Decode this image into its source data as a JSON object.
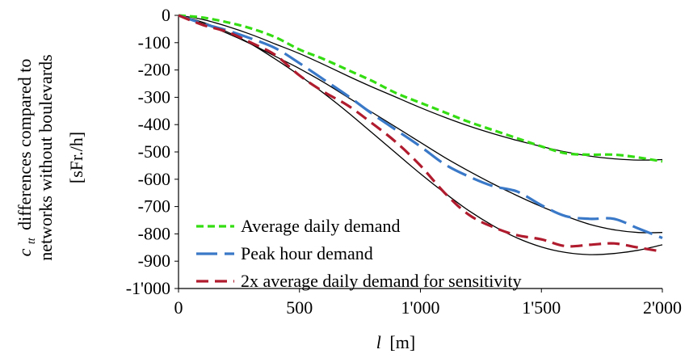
{
  "chart_data": {
    "type": "line",
    "xlabel": "[m]",
    "xlabel_var": "l",
    "ylabel_line1": "differences compared to",
    "ylabel_line1_var": "c",
    "ylabel_line1_sub": "tt",
    "ylabel_line2": "networks without boulevards",
    "ylabel_line3": "[sFr./h]",
    "xlim": [
      0,
      2000
    ],
    "ylim": [
      -1000,
      0
    ],
    "x_ticks": [
      0,
      500,
      1000,
      1500,
      2000
    ],
    "x_tick_labels": [
      "0",
      "500",
      "1'000",
      "1'500",
      "2'000"
    ],
    "y_ticks": [
      0,
      -100,
      -200,
      -300,
      -400,
      -500,
      -600,
      -700,
      -800,
      -900,
      -1000
    ],
    "y_tick_labels": [
      "0",
      "-100",
      "-200",
      "-300",
      "-400",
      "-500",
      "-600",
      "-700",
      "-800",
      "-900",
      "-1'000"
    ],
    "legend_position": "bottom-left",
    "series": [
      {
        "name": "Average daily demand",
        "color": "#33dd11",
        "dash": "short",
        "x": [
          0,
          100,
          200,
          300,
          400,
          500,
          600,
          700,
          800,
          900,
          1000,
          1100,
          1200,
          1300,
          1400,
          1500,
          1600,
          1700,
          1800,
          1900,
          2000
        ],
        "y": [
          0,
          -8,
          -25,
          -48,
          -80,
          -125,
          -160,
          -200,
          -240,
          -285,
          -320,
          -355,
          -390,
          -420,
          -450,
          -480,
          -505,
          -510,
          -510,
          -520,
          -535
        ]
      },
      {
        "name": "Peak hour demand",
        "color": "#3a78c8",
        "dash": "long",
        "x": [
          0,
          100,
          200,
          300,
          400,
          500,
          600,
          700,
          800,
          900,
          1000,
          1100,
          1200,
          1300,
          1400,
          1500,
          1600,
          1700,
          1800,
          1900,
          2000
        ],
        "y": [
          0,
          -30,
          -55,
          -85,
          -120,
          -175,
          -235,
          -295,
          -360,
          -420,
          -480,
          -545,
          -590,
          -625,
          -645,
          -695,
          -735,
          -745,
          -745,
          -780,
          -815
        ]
      },
      {
        "name": "2x average daily demand for sensitivity",
        "color": "#b01c2e",
        "dash": "medium",
        "x": [
          0,
          100,
          200,
          300,
          400,
          500,
          600,
          700,
          800,
          900,
          1000,
          1100,
          1200,
          1300,
          1400,
          1500,
          1600,
          1700,
          1800,
          1900,
          2000
        ],
        "y": [
          0,
          -35,
          -60,
          -100,
          -145,
          -220,
          -280,
          -330,
          -395,
          -465,
          -550,
          -650,
          -730,
          -775,
          -805,
          -820,
          -845,
          -840,
          -835,
          -850,
          -865
        ]
      }
    ],
    "fit_lines": [
      {
        "color": "#000000",
        "x": [
          0,
          100,
          200,
          300,
          400,
          500,
          600,
          700,
          800,
          900,
          1000,
          1100,
          1200,
          1300,
          1400,
          1500,
          1600,
          1700,
          1800,
          1900,
          2000
        ],
        "y": [
          0,
          -15,
          -40,
          -70,
          -105,
          -140,
          -180,
          -222,
          -262,
          -300,
          -338,
          -373,
          -405,
          -433,
          -458,
          -480,
          -500,
          -515,
          -525,
          -530,
          -528
        ]
      },
      {
        "color": "#000000",
        "x": [
          0,
          100,
          200,
          300,
          400,
          500,
          600,
          700,
          800,
          900,
          1000,
          1100,
          1200,
          1300,
          1400,
          1500,
          1600,
          1700,
          1800,
          1900,
          2000
        ],
        "y": [
          0,
          -30,
          -65,
          -105,
          -150,
          -195,
          -245,
          -300,
          -355,
          -410,
          -465,
          -520,
          -570,
          -617,
          -660,
          -700,
          -735,
          -765,
          -785,
          -795,
          -795
        ]
      },
      {
        "color": "#000000",
        "x": [
          0,
          100,
          200,
          300,
          400,
          500,
          600,
          700,
          800,
          900,
          1000,
          1100,
          1200,
          1300,
          1400,
          1500,
          1600,
          1700,
          1800,
          1900,
          2000
        ],
        "y": [
          0,
          -25,
          -60,
          -105,
          -160,
          -220,
          -285,
          -355,
          -430,
          -505,
          -580,
          -650,
          -715,
          -770,
          -815,
          -848,
          -868,
          -876,
          -872,
          -860,
          -840
        ]
      }
    ]
  }
}
